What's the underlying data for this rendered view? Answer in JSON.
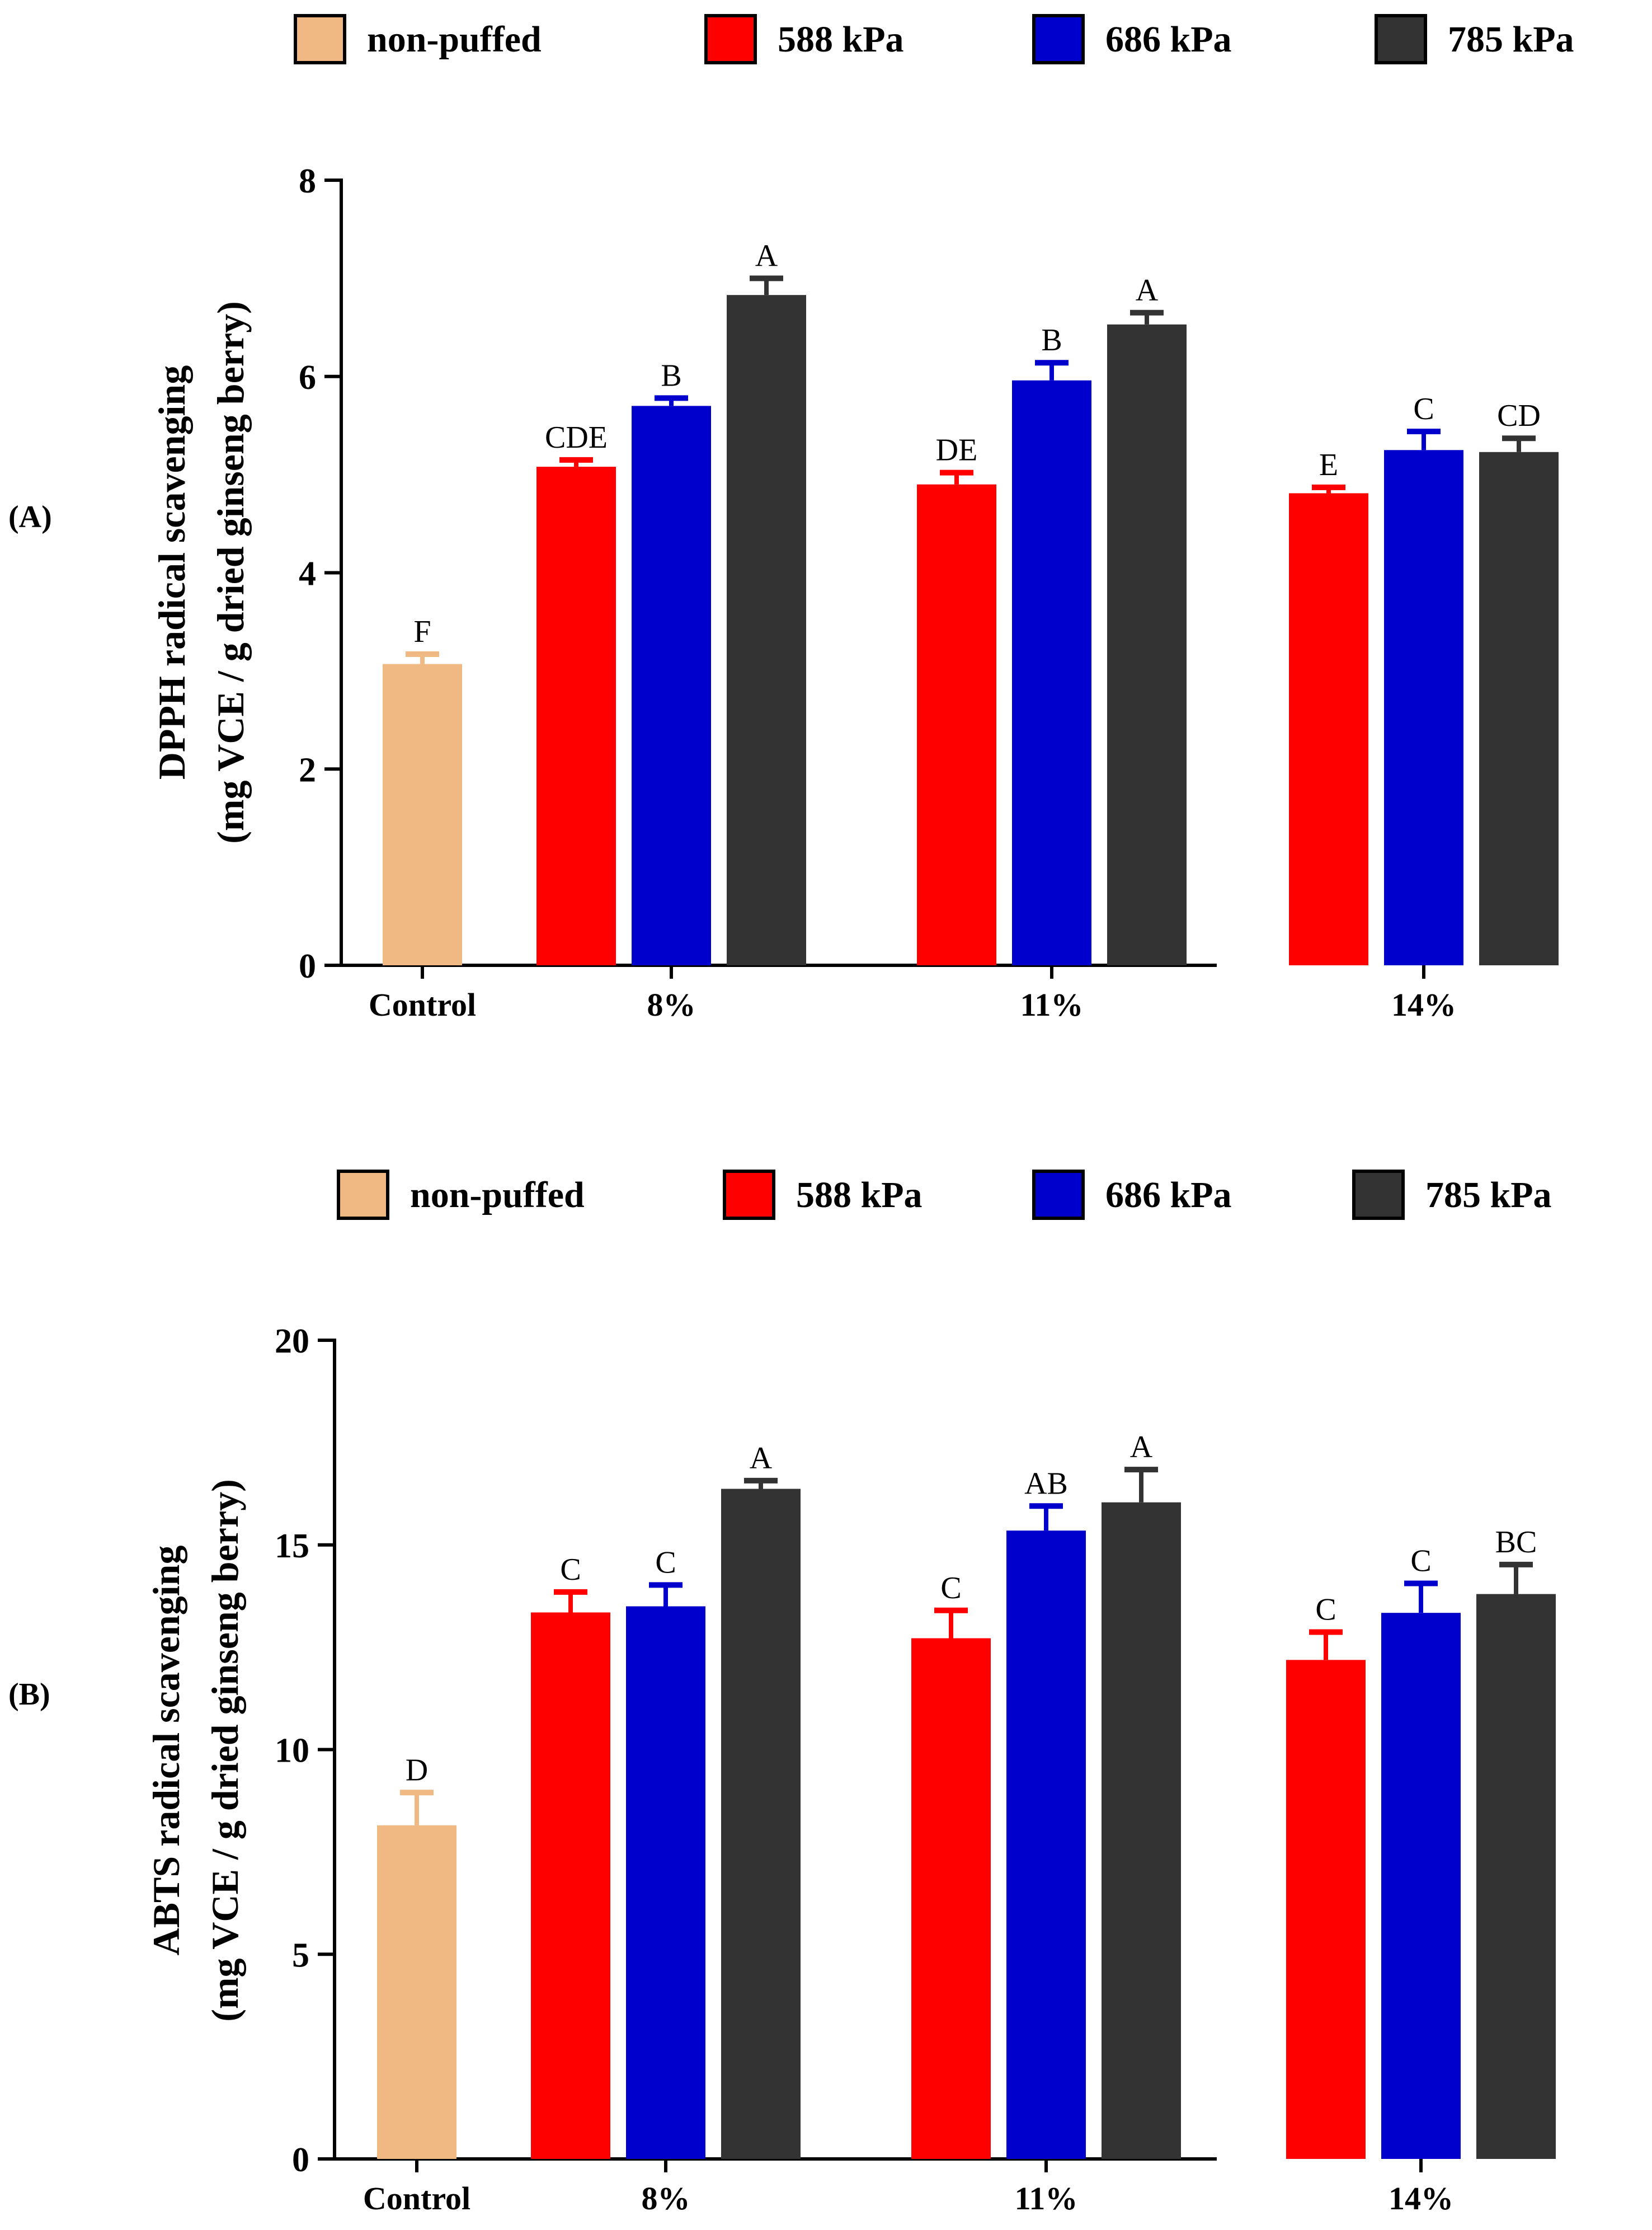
{
  "colors": {
    "non_puffed": "#F0B882",
    "kpa588": "#FF0000",
    "kpa686": "#0000CC",
    "kpa785": "#333333",
    "axis": "#000000"
  },
  "legend": [
    {
      "key": "non_puffed",
      "label": "non-puffed"
    },
    {
      "key": "kpa588",
      "label": "588 kPa"
    },
    {
      "key": "kpa686",
      "label": "686 kPa"
    },
    {
      "key": "kpa785",
      "label": "785 kPa"
    }
  ],
  "chart_data": [
    {
      "type": "bar",
      "panel_label": "(A)",
      "ylabel_line1": "DPPH radical scavenging",
      "ylabel_line2": "(mg VCE / g dried ginseng berry)",
      "xlabel": "",
      "ylim": [
        0,
        8
      ],
      "yticks": [
        "0",
        "2",
        "4",
        "6",
        "8"
      ],
      "categories": [
        "Control",
        "8%",
        "11%",
        "14%"
      ],
      "series": [
        {
          "name": "non-puffed",
          "color_key": "non_puffed",
          "values": [
            3.07,
            null,
            null,
            null
          ],
          "errors": [
            0.1,
            null,
            null,
            null
          ],
          "letters": [
            "F",
            null,
            null,
            null
          ]
        },
        {
          "name": "588 kPa",
          "color_key": "kpa588",
          "values": [
            null,
            5.08,
            4.9,
            4.81
          ],
          "errors": [
            null,
            0.07,
            0.12,
            0.06
          ],
          "letters": [
            null,
            "CDE",
            "DE",
            "E"
          ]
        },
        {
          "name": "686 kPa",
          "color_key": "kpa686",
          "values": [
            null,
            5.7,
            5.96,
            5.25
          ],
          "errors": [
            null,
            0.08,
            0.18,
            0.19
          ],
          "letters": [
            null,
            "B",
            "B",
            "C"
          ]
        },
        {
          "name": "785 kPa",
          "color_key": "kpa785",
          "values": [
            null,
            6.83,
            6.53,
            5.23
          ],
          "errors": [
            null,
            0.17,
            0.12,
            0.14
          ],
          "letters": [
            null,
            "A",
            "A",
            "CD"
          ]
        }
      ]
    },
    {
      "type": "bar",
      "panel_label": "(B)",
      "ylabel_line1": "ABTS radical scavenging",
      "ylabel_line2": "(mg VCE / g dried ginseng berry)",
      "xlabel": "",
      "ylim": [
        0,
        20
      ],
      "yticks": [
        "0",
        "5",
        "10",
        "15",
        "20"
      ],
      "categories": [
        "Control",
        "8%",
        "11%",
        "14%"
      ],
      "series": [
        {
          "name": "non-puffed",
          "color_key": "non_puffed",
          "values": [
            8.15,
            null,
            null,
            null
          ],
          "errors": [
            0.8,
            null,
            null,
            null
          ],
          "letters": [
            "D",
            null,
            null,
            null
          ]
        },
        {
          "name": "588 kPa",
          "color_key": "kpa588",
          "values": [
            null,
            13.35,
            12.72,
            12.19
          ],
          "errors": [
            null,
            0.5,
            0.68,
            0.68
          ],
          "letters": [
            null,
            "C",
            "C",
            "C"
          ]
        },
        {
          "name": "686 kPa",
          "color_key": "kpa686",
          "values": [
            null,
            13.5,
            15.35,
            13.34
          ],
          "errors": [
            null,
            0.52,
            0.6,
            0.72
          ],
          "letters": [
            null,
            "C",
            "AB",
            "C"
          ]
        },
        {
          "name": "785 kPa",
          "color_key": "kpa785",
          "values": [
            null,
            16.37,
            16.04,
            13.8
          ],
          "errors": [
            null,
            0.2,
            0.8,
            0.72
          ],
          "letters": [
            null,
            "A",
            "A",
            "BC"
          ]
        }
      ]
    }
  ]
}
